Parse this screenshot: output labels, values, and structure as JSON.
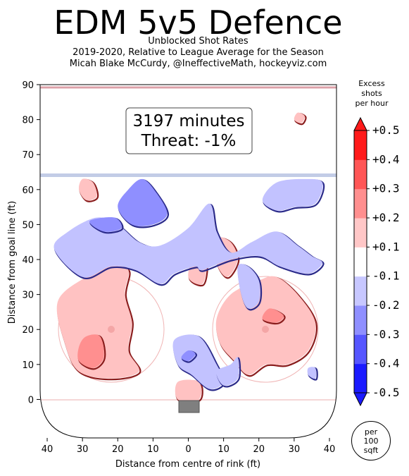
{
  "title": "EDM 5v5 Defence",
  "subtitle_lines": [
    "Unblocked Shot Rates",
    "2019-2020, Relative to League Average for the Season",
    "Micah Blake McCurdy, @IneffectiveMath, hockeyviz.com"
  ],
  "annotation": {
    "line1": "3197 minutes",
    "line2": "Threat: -1%"
  },
  "legend": {
    "title_lines": [
      "Excess",
      "shots",
      "per hour"
    ],
    "levels": [
      "-0.5",
      "-0.4",
      "-0.3",
      "-0.2",
      "-0.1",
      "+0.1",
      "+0.2",
      "+0.3",
      "+0.4",
      "+0.5"
    ],
    "colors": [
      "#1a1aff",
      "#5656ff",
      "#8f8fff",
      "#c7c7ff",
      "#ffffff",
      "#ffc7c7",
      "#ff8f8f",
      "#ff5656",
      "#ff1a1a"
    ],
    "badge": "per\n100\nsqft"
  },
  "chart_data": {
    "type": "heatmap",
    "xlabel": "Distance from centre of rink (ft)",
    "ylabel": "Distance from goal line (ft)",
    "xlim": [
      42,
      -42
    ],
    "ylim": [
      -11,
      90
    ],
    "x_ticks": [
      40,
      30,
      20,
      10,
      0,
      10,
      20,
      30,
      40
    ],
    "y_ticks": [
      0,
      10,
      20,
      30,
      40,
      50,
      60,
      70,
      80,
      90
    ],
    "colors": {
      "excess": "#ff9a9a",
      "deficit": "#b9b9ff",
      "neutral": "#ffffff"
    },
    "regions": [
      {
        "sign": "+",
        "level": 0.15,
        "points": [
          [
            29,
            35
          ],
          [
            22,
            38
          ],
          [
            17,
            37
          ],
          [
            18,
            30
          ],
          [
            16,
            22
          ],
          [
            17,
            14
          ],
          [
            14,
            8
          ],
          [
            22,
            6
          ],
          [
            31,
            8
          ],
          [
            35,
            16
          ],
          [
            37,
            28
          ]
        ]
      },
      {
        "sign": "+",
        "level": 0.25,
        "points": [
          [
            29,
            18
          ],
          [
            25,
            18
          ],
          [
            24,
            12
          ],
          [
            27,
            9
          ],
          [
            31,
            11
          ],
          [
            31,
            15
          ]
        ]
      },
      {
        "sign": "+",
        "level": 0.15,
        "points": [
          [
            -12,
            30
          ],
          [
            -20,
            34
          ],
          [
            -25,
            35
          ],
          [
            -31,
            30
          ],
          [
            -36,
            22
          ],
          [
            -34,
            14
          ],
          [
            -28,
            10
          ],
          [
            -22,
            10
          ],
          [
            -17,
            7
          ],
          [
            -13,
            11
          ],
          [
            -9,
            16
          ],
          [
            -8,
            23
          ]
        ]
      },
      {
        "sign": "+",
        "level": 0.25,
        "points": [
          [
            -23,
            26
          ],
          [
            -27,
            24
          ],
          [
            -25,
            22
          ],
          [
            -21,
            23
          ]
        ]
      },
      {
        "sign": "+",
        "level": 0.15,
        "points": [
          [
            -8,
            46
          ],
          [
            -12,
            45
          ],
          [
            -14,
            40
          ],
          [
            -11,
            35
          ],
          [
            -8,
            39
          ]
        ]
      },
      {
        "sign": "+",
        "level": 0.15,
        "points": [
          [
            -2,
            42
          ],
          [
            -5,
            39
          ],
          [
            -4,
            33
          ],
          [
            0,
            35
          ]
        ]
      },
      {
        "sign": "+",
        "level": 0.15,
        "points": [
          [
            3,
            5
          ],
          [
            -3,
            5
          ],
          [
            -3,
            0
          ],
          [
            3,
            0
          ]
        ]
      },
      {
        "sign": "+",
        "level": 0.15,
        "points": [
          [
            30,
            63
          ],
          [
            27,
            62
          ],
          [
            26,
            58
          ],
          [
            29,
            57
          ],
          [
            31,
            60
          ]
        ]
      },
      {
        "sign": "+",
        "level": 0.15,
        "points": [
          [
            -31,
            82
          ],
          [
            -33,
            81
          ],
          [
            -32,
            79
          ],
          [
            -30,
            80
          ]
        ]
      },
      {
        "sign": "-",
        "level": -0.15,
        "points": [
          [
            38,
            43
          ],
          [
            34,
            48
          ],
          [
            26,
            52
          ],
          [
            20,
            50
          ],
          [
            14,
            45
          ],
          [
            8,
            44
          ],
          [
            0,
            49
          ],
          [
            -6,
            56
          ],
          [
            -8,
            48
          ],
          [
            -12,
            42
          ],
          [
            -18,
            45
          ],
          [
            -25,
            48
          ],
          [
            -31,
            44
          ],
          [
            -35,
            41
          ],
          [
            -38,
            39
          ],
          [
            -34,
            36
          ],
          [
            -26,
            38
          ],
          [
            -20,
            41
          ],
          [
            -12,
            40
          ],
          [
            -4,
            37
          ],
          [
            -2,
            38
          ],
          [
            4,
            36
          ],
          [
            8,
            33
          ],
          [
            15,
            37
          ],
          [
            22,
            38
          ],
          [
            30,
            35
          ]
        ]
      },
      {
        "sign": "-",
        "level": -0.2,
        "points": [
          [
            20,
            55
          ],
          [
            17,
            60
          ],
          [
            13,
            63
          ],
          [
            9,
            59
          ],
          [
            6,
            53
          ],
          [
            10,
            50
          ],
          [
            16,
            50
          ]
        ]
      },
      {
        "sign": "-",
        "level": -0.25,
        "points": [
          [
            28,
            51
          ],
          [
            21,
            52
          ],
          [
            19,
            49
          ],
          [
            24,
            48
          ]
        ]
      },
      {
        "sign": "-",
        "level": -0.15,
        "points": [
          [
            -38,
            62
          ],
          [
            -33,
            63
          ],
          [
            -25,
            62
          ],
          [
            -21,
            57
          ],
          [
            -25,
            54
          ],
          [
            -30,
            55
          ],
          [
            -36,
            56
          ]
        ]
      },
      {
        "sign": "-",
        "level": -0.15,
        "points": [
          [
            -20,
            28
          ],
          [
            -17,
            26
          ],
          [
            -15,
            30
          ],
          [
            -14,
            38
          ],
          [
            -17,
            38
          ],
          [
            -20,
            34
          ]
        ]
      },
      {
        "sign": "-",
        "level": -0.15,
        "points": [
          [
            4,
            17
          ],
          [
            -3,
            18
          ],
          [
            -8,
            10
          ],
          [
            -10,
            5
          ],
          [
            -6,
            3
          ],
          [
            -1,
            7
          ],
          [
            3,
            10
          ]
        ]
      },
      {
        "sign": "-",
        "level": -0.2,
        "points": [
          [
            0,
            14
          ],
          [
            -2,
            13
          ],
          [
            0,
            11
          ],
          [
            2,
            12
          ]
        ]
      },
      {
        "sign": "-",
        "level": -0.15,
        "points": [
          [
            -8,
            8
          ],
          [
            -12,
            10
          ],
          [
            -14,
            12
          ],
          [
            -14,
            6
          ],
          [
            -10,
            4
          ]
        ]
      },
      {
        "sign": "-",
        "level": -0.15,
        "points": [
          [
            -34,
            9
          ],
          [
            -36,
            9
          ],
          [
            -36,
            6
          ],
          [
            -34,
            7
          ]
        ]
      }
    ]
  }
}
